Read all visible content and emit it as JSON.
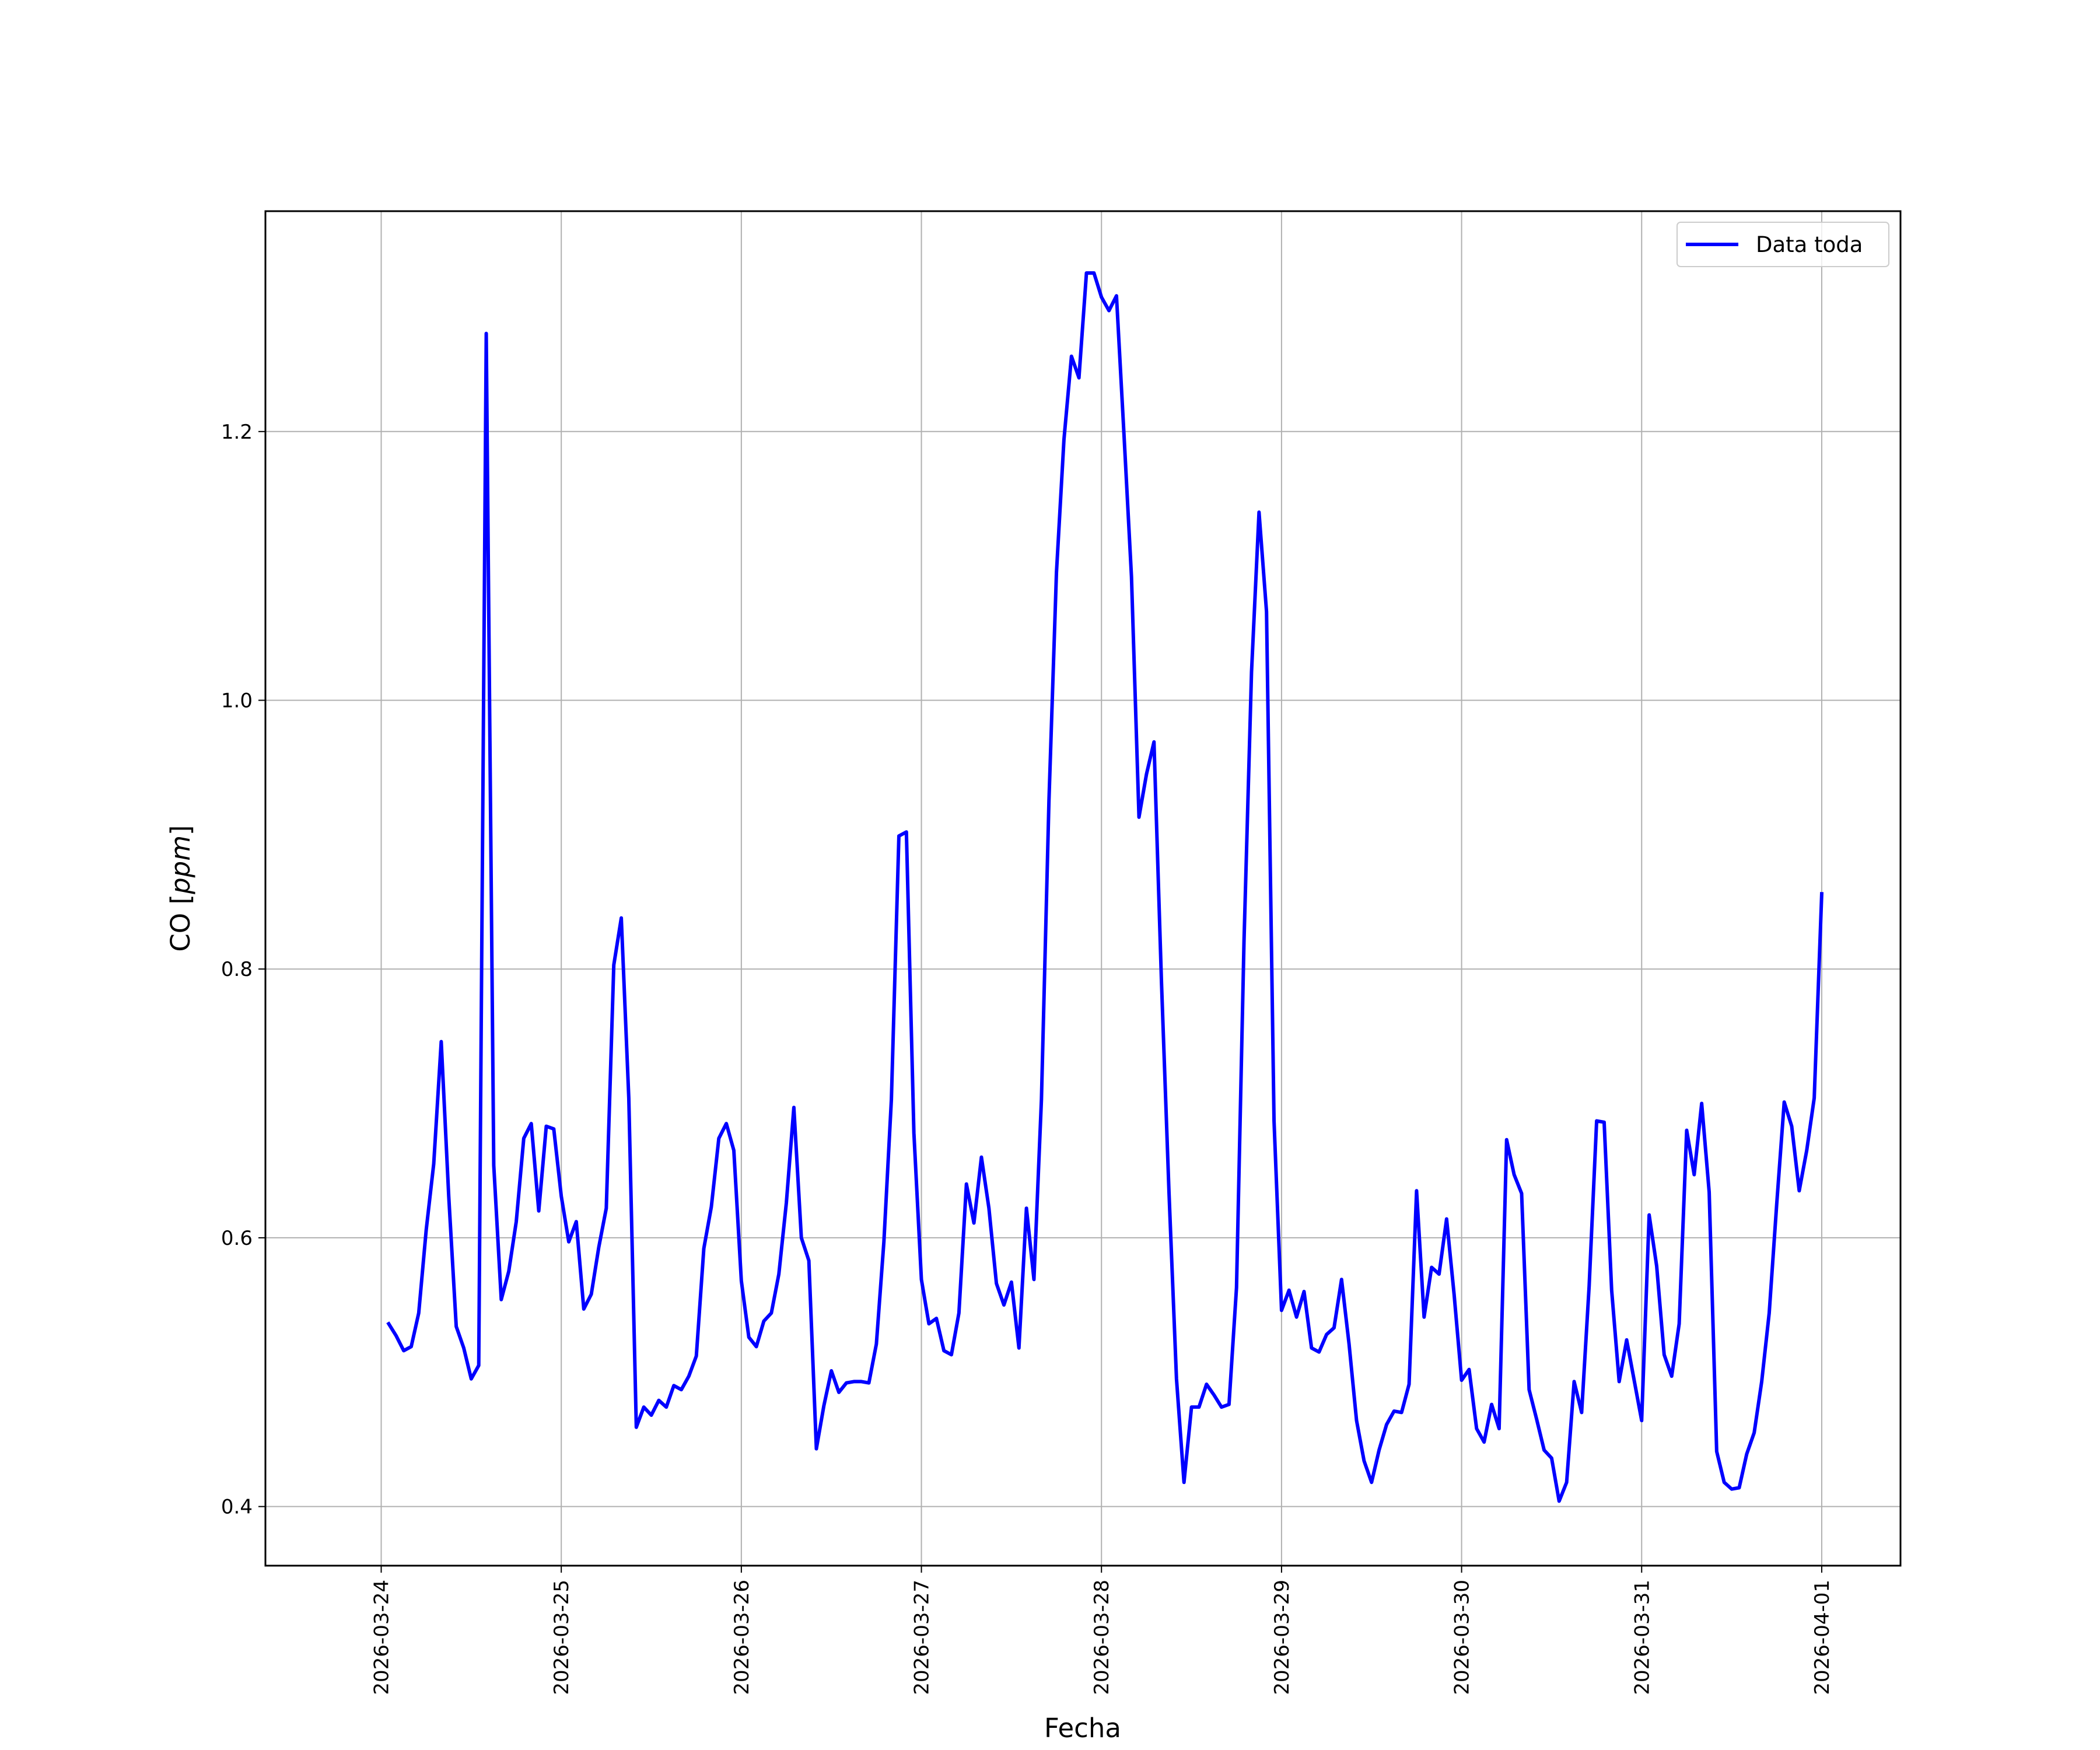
{
  "chart_data": {
    "type": "line",
    "title": "",
    "xlabel": "Fecha",
    "ylabel": "CO [ppm]",
    "ylabel_parts": {
      "prefix": "CO [",
      "unit": "ppm",
      "suffix": "]"
    },
    "x_ticks": [
      "2026-03-24",
      "2026-03-25",
      "2026-03-26",
      "2026-03-27",
      "2026-03-28",
      "2026-03-29",
      "2026-03-30",
      "2026-03-31",
      "2026-04-01"
    ],
    "y_ticks": [
      "0.4",
      "0.6",
      "0.8",
      "1.0",
      "1.2"
    ],
    "xlim": [
      "2026-03-23T08:34",
      "2026-04-01T10:30"
    ],
    "ylim": [
      0.356,
      1.364
    ],
    "grid": true,
    "legend": {
      "position": "top-right",
      "entries": [
        "Data toda"
      ]
    },
    "colors": {
      "line": "#0000ff",
      "grid": "#b0b0b0",
      "frame": "#000000"
    },
    "series": [
      {
        "name": "Data toda",
        "x": [
          "2026-03-24T01:00",
          "2026-03-24T02:00",
          "2026-03-24T03:00",
          "2026-03-24T04:00",
          "2026-03-24T05:00",
          "2026-03-24T06:00",
          "2026-03-24T07:00",
          "2026-03-24T08:00",
          "2026-03-24T09:00",
          "2026-03-24T10:00",
          "2026-03-24T11:00",
          "2026-03-24T12:00",
          "2026-03-24T13:00",
          "2026-03-24T14:00",
          "2026-03-24T15:00",
          "2026-03-24T16:00",
          "2026-03-24T17:00",
          "2026-03-24T18:00",
          "2026-03-24T19:00",
          "2026-03-24T20:00",
          "2026-03-24T21:00",
          "2026-03-24T22:00",
          "2026-03-24T23:00",
          "2026-03-25T00:00",
          "2026-03-25T01:00",
          "2026-03-25T02:00",
          "2026-03-25T03:00",
          "2026-03-25T04:00",
          "2026-03-25T05:00",
          "2026-03-25T06:00",
          "2026-03-25T07:00",
          "2026-03-25T08:00",
          "2026-03-25T09:00",
          "2026-03-25T10:00",
          "2026-03-25T11:00",
          "2026-03-25T12:00",
          "2026-03-25T13:00",
          "2026-03-25T14:00",
          "2026-03-25T15:00",
          "2026-03-25T16:00",
          "2026-03-25T17:00",
          "2026-03-25T18:00",
          "2026-03-25T19:00",
          "2026-03-25T20:00",
          "2026-03-25T21:00",
          "2026-03-25T22:00",
          "2026-03-25T23:00",
          "2026-03-26T00:00",
          "2026-03-26T01:00",
          "2026-03-26T02:00",
          "2026-03-26T03:00",
          "2026-03-26T04:00",
          "2026-03-26T05:00",
          "2026-03-26T06:00",
          "2026-03-26T07:00",
          "2026-03-26T08:00",
          "2026-03-26T09:00",
          "2026-03-26T10:00",
          "2026-03-26T11:00",
          "2026-03-26T12:00",
          "2026-03-26T13:00",
          "2026-03-26T14:00",
          "2026-03-26T15:00",
          "2026-03-26T16:00",
          "2026-03-26T17:00",
          "2026-03-26T18:00",
          "2026-03-26T19:00",
          "2026-03-26T20:00",
          "2026-03-26T21:00",
          "2026-03-26T22:00",
          "2026-03-26T23:00",
          "2026-03-27T00:00",
          "2026-03-27T01:00",
          "2026-03-27T02:00",
          "2026-03-27T03:00",
          "2026-03-27T04:00",
          "2026-03-27T05:00",
          "2026-03-27T06:00",
          "2026-03-27T07:00",
          "2026-03-27T08:00",
          "2026-03-27T09:00",
          "2026-03-27T10:00",
          "2026-03-27T11:00",
          "2026-03-27T12:00",
          "2026-03-27T13:00",
          "2026-03-27T14:00",
          "2026-03-27T15:00",
          "2026-03-27T16:00",
          "2026-03-27T17:00",
          "2026-03-27T18:00",
          "2026-03-27T19:00",
          "2026-03-27T20:00",
          "2026-03-27T21:00",
          "2026-03-27T22:00",
          "2026-03-27T23:00",
          "2026-03-28T00:00",
          "2026-03-28T01:00",
          "2026-03-28T02:00",
          "2026-03-28T03:00",
          "2026-03-28T04:00",
          "2026-03-28T05:00",
          "2026-03-28T06:00",
          "2026-03-28T07:00",
          "2026-03-28T08:00",
          "2026-03-28T09:00",
          "2026-03-28T10:00",
          "2026-03-28T11:00",
          "2026-03-28T12:00",
          "2026-03-28T13:00",
          "2026-03-28T14:00",
          "2026-03-28T15:00",
          "2026-03-28T16:00",
          "2026-03-28T17:00",
          "2026-03-28T18:00",
          "2026-03-28T19:00",
          "2026-03-28T20:00",
          "2026-03-28T21:00",
          "2026-03-28T22:00",
          "2026-03-28T23:00",
          "2026-03-29T00:00",
          "2026-03-29T01:00",
          "2026-03-29T02:00",
          "2026-03-29T03:00",
          "2026-03-29T04:00",
          "2026-03-29T05:00",
          "2026-03-29T06:00",
          "2026-03-29T07:00",
          "2026-03-29T08:00",
          "2026-03-29T09:00",
          "2026-03-29T10:00",
          "2026-03-29T11:00",
          "2026-03-29T12:00",
          "2026-03-29T13:00",
          "2026-03-29T14:00",
          "2026-03-29T15:00",
          "2026-03-29T16:00",
          "2026-03-29T17:00",
          "2026-03-29T18:00",
          "2026-03-29T19:00",
          "2026-03-29T20:00",
          "2026-03-29T21:00",
          "2026-03-29T22:00",
          "2026-03-29T23:00",
          "2026-03-30T00:00",
          "2026-03-30T01:00",
          "2026-03-30T02:00",
          "2026-03-30T03:00",
          "2026-03-30T04:00",
          "2026-03-30T05:00",
          "2026-03-30T06:00",
          "2026-03-30T07:00",
          "2026-03-30T08:00",
          "2026-03-30T09:00",
          "2026-03-30T10:00",
          "2026-03-30T11:00",
          "2026-03-30T12:00",
          "2026-03-30T13:00",
          "2026-03-30T14:00",
          "2026-03-30T15:00",
          "2026-03-30T16:00",
          "2026-03-30T17:00",
          "2026-03-30T18:00",
          "2026-03-30T19:00",
          "2026-03-30T20:00",
          "2026-03-30T21:00",
          "2026-03-30T22:00",
          "2026-03-30T23:00",
          "2026-03-31T00:00",
          "2026-03-31T01:00",
          "2026-03-31T02:00",
          "2026-03-31T03:00",
          "2026-03-31T04:00",
          "2026-03-31T05:00",
          "2026-03-31T06:00",
          "2026-03-31T07:00",
          "2026-03-31T08:00",
          "2026-03-31T09:00",
          "2026-03-31T10:00",
          "2026-03-31T11:00",
          "2026-03-31T12:00",
          "2026-03-31T13:00",
          "2026-03-31T14:00",
          "2026-03-31T15:00",
          "2026-03-31T16:00",
          "2026-03-31T17:00",
          "2026-03-31T18:00",
          "2026-03-31T19:00",
          "2026-03-31T20:00",
          "2026-03-31T21:00",
          "2026-03-31T22:00",
          "2026-03-31T23:00",
          "2026-04-01T00:00"
        ],
        "values": [
          0.536,
          0.527,
          0.516,
          0.519,
          0.544,
          0.606,
          0.655,
          0.746,
          0.631,
          0.534,
          0.518,
          0.495,
          0.505,
          1.273,
          0.654,
          0.554,
          0.575,
          0.612,
          0.674,
          0.685,
          0.62,
          0.683,
          0.681,
          0.631,
          0.597,
          0.612,
          0.547,
          0.558,
          0.593,
          0.622,
          0.803,
          0.838,
          0.704,
          0.459,
          0.474,
          0.468,
          0.479,
          0.474,
          0.49,
          0.487,
          0.497,
          0.512,
          0.592,
          0.623,
          0.674,
          0.685,
          0.665,
          0.568,
          0.526,
          0.519,
          0.538,
          0.544,
          0.573,
          0.626,
          0.697,
          0.6,
          0.583,
          0.443,
          0.475,
          0.501,
          0.485,
          0.492,
          0.493,
          0.493,
          0.492,
          0.521,
          0.597,
          0.703,
          0.899,
          0.902,
          0.678,
          0.569,
          0.536,
          0.54,
          0.516,
          0.513,
          0.544,
          0.64,
          0.611,
          0.66,
          0.622,
          0.566,
          0.55,
          0.567,
          0.518,
          0.622,
          0.569,
          0.703,
          0.925,
          1.095,
          1.194,
          1.256,
          1.24,
          1.318,
          1.318,
          1.3,
          1.29,
          1.301,
          1.198,
          1.092,
          0.913,
          0.945,
          0.969,
          0.79,
          0.634,
          0.495,
          0.418,
          0.474,
          0.474,
          0.491,
          0.483,
          0.474,
          0.476,
          0.563,
          0.821,
          1.021,
          1.14,
          1.066,
          0.687,
          0.546,
          0.561,
          0.541,
          0.56,
          0.518,
          0.515,
          0.528,
          0.533,
          0.569,
          0.521,
          0.464,
          0.434,
          0.418,
          0.442,
          0.461,
          0.471,
          0.47,
          0.491,
          0.635,
          0.541,
          0.578,
          0.573,
          0.614,
          0.558,
          0.494,
          0.502,
          0.458,
          0.448,
          0.476,
          0.458,
          0.673,
          0.647,
          0.633,
          0.487,
          0.465,
          0.442,
          0.436,
          0.404,
          0.418,
          0.493,
          0.47,
          0.564,
          0.687,
          0.686,
          0.561,
          0.493,
          0.524,
          0.494,
          0.464,
          0.617,
          0.579,
          0.513,
          0.497,
          0.536,
          0.68,
          0.647,
          0.7,
          0.634,
          0.441,
          0.418,
          0.413,
          0.414,
          0.439,
          0.455,
          0.493,
          0.544,
          0.625,
          0.701,
          0.683,
          0.635,
          0.665,
          0.704,
          0.856
        ]
      }
    ]
  }
}
